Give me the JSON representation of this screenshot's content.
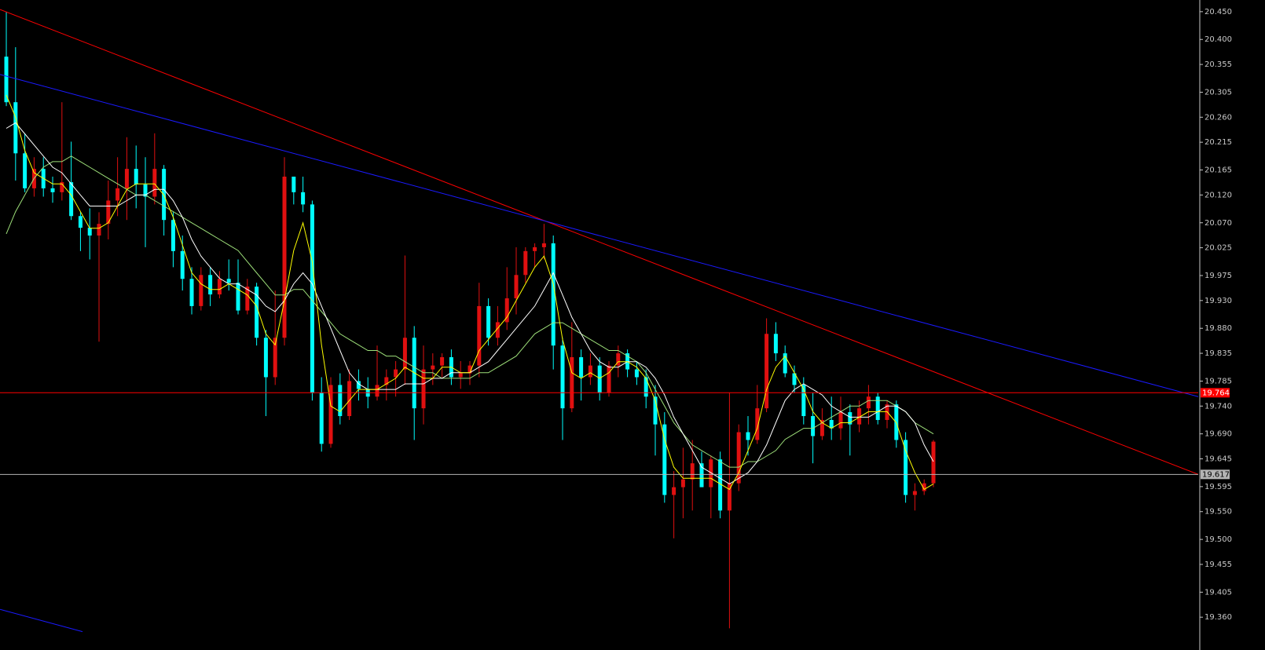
{
  "chart_data": {
    "type": "candlestick",
    "up_color": "#e01010",
    "down_color": "#00ffff",
    "axis_color": "#c8c8c8",
    "xlim": [
      -0.68,
      128.56
    ],
    "ylim": [
      19.332,
      20.471
    ],
    "yticks": [
      {
        "value": 20.45,
        "label": "20.450"
      },
      {
        "value": 20.4,
        "label": "20.400"
      },
      20.355,
      20.305,
      {
        "value": 20.26,
        "label": "20.260"
      },
      20.215,
      20.165,
      {
        "value": 20.12,
        "label": "20.120"
      },
      {
        "value": 20.07,
        "label": "20.070"
      },
      20.025,
      19.975,
      {
        "value": 19.93,
        "label": "19.930"
      },
      {
        "value": 19.88,
        "label": "19.880"
      },
      19.835,
      19.785,
      {
        "value": 19.74,
        "label": "19.740"
      },
      {
        "value": 19.69,
        "label": "19.690"
      },
      19.645,
      19.595,
      {
        "value": 19.55,
        "label": "19.550"
      },
      {
        "value": 19.5,
        "label": "19.500"
      },
      19.455,
      19.405,
      {
        "value": 19.36,
        "label": "19.360"
      }
    ],
    "candles": [
      [
        20.369,
        20.45,
        20.28,
        20.287
      ],
      [
        20.287,
        20.386,
        20.146,
        20.195
      ],
      [
        20.195,
        20.231,
        20.125,
        20.132
      ],
      [
        20.132,
        20.188,
        20.117,
        20.167
      ],
      [
        20.167,
        20.188,
        20.117,
        20.132
      ],
      [
        20.132,
        20.153,
        20.106,
        20.125
      ],
      [
        20.125,
        20.287,
        20.11,
        20.143
      ],
      [
        20.143,
        20.216,
        20.075,
        20.082
      ],
      [
        20.082,
        20.089,
        20.019,
        20.061
      ],
      [
        20.061,
        20.096,
        20.004,
        20.047
      ],
      [
        20.047,
        20.089,
        19.856,
        20.068
      ],
      [
        20.068,
        20.146,
        20.04,
        20.11
      ],
      [
        20.11,
        20.188,
        20.082,
        20.132
      ],
      [
        20.132,
        20.224,
        20.075,
        20.167
      ],
      [
        20.167,
        20.209,
        20.096,
        20.139
      ],
      [
        20.139,
        20.188,
        20.026,
        20.117
      ],
      [
        20.117,
        20.231,
        20.103,
        20.167
      ],
      [
        20.167,
        20.174,
        20.047,
        20.075
      ],
      [
        20.075,
        20.089,
        19.99,
        20.019
      ],
      [
        20.019,
        20.047,
        19.948,
        19.969
      ],
      [
        19.969,
        19.99,
        19.905,
        19.92
      ],
      [
        19.92,
        19.99,
        19.912,
        19.976
      ],
      [
        19.976,
        19.99,
        19.92,
        19.941
      ],
      [
        19.941,
        19.983,
        19.934,
        19.969
      ],
      [
        19.969,
        20.004,
        19.948,
        19.962
      ],
      [
        19.962,
        20.004,
        19.905,
        19.912
      ],
      [
        19.912,
        19.969,
        19.905,
        19.955
      ],
      [
        19.955,
        19.962,
        19.849,
        19.863
      ],
      [
        19.863,
        19.877,
        19.722,
        19.792
      ],
      [
        19.792,
        19.948,
        19.778,
        19.863
      ],
      [
        19.863,
        20.188,
        19.849,
        20.153
      ],
      [
        20.153,
        20.153,
        20.103,
        20.125
      ],
      [
        20.125,
        20.153,
        20.089,
        20.103
      ],
      [
        20.103,
        20.11,
        19.75,
        19.764
      ],
      [
        19.764,
        19.792,
        19.658,
        19.672
      ],
      [
        19.672,
        19.792,
        19.665,
        19.778
      ],
      [
        19.778,
        19.799,
        19.707,
        19.722
      ],
      [
        19.722,
        19.806,
        19.715,
        19.785
      ],
      [
        19.785,
        19.806,
        19.75,
        19.771
      ],
      [
        19.771,
        19.792,
        19.736,
        19.757
      ],
      [
        19.757,
        19.849,
        19.75,
        19.778
      ],
      [
        19.778,
        19.806,
        19.75,
        19.792
      ],
      [
        19.792,
        19.821,
        19.757,
        19.806
      ],
      [
        19.806,
        20.011,
        19.778,
        19.863
      ],
      [
        19.863,
        19.884,
        19.679,
        19.736
      ],
      [
        19.736,
        19.849,
        19.707,
        19.806
      ],
      [
        19.806,
        19.835,
        19.778,
        19.813
      ],
      [
        19.813,
        19.835,
        19.792,
        19.828
      ],
      [
        19.828,
        19.842,
        19.778,
        19.792
      ],
      [
        19.792,
        19.821,
        19.771,
        19.799
      ],
      [
        19.799,
        19.821,
        19.778,
        19.813
      ],
      [
        19.813,
        19.962,
        19.792,
        19.92
      ],
      [
        19.92,
        19.934,
        19.849,
        19.863
      ],
      [
        19.863,
        19.92,
        19.849,
        19.891
      ],
      [
        19.891,
        19.99,
        19.877,
        19.934
      ],
      [
        19.934,
        20.026,
        19.905,
        19.976
      ],
      [
        19.976,
        20.026,
        19.962,
        20.019
      ],
      [
        20.019,
        20.033,
        19.99,
        20.026
      ],
      [
        20.026,
        20.068,
        20.004,
        20.033
      ],
      [
        20.033,
        20.047,
        19.806,
        19.849
      ],
      [
        19.849,
        19.863,
        19.679,
        19.736
      ],
      [
        19.736,
        19.891,
        19.729,
        19.828
      ],
      [
        19.828,
        19.842,
        19.75,
        19.792
      ],
      [
        19.792,
        19.835,
        19.778,
        19.813
      ],
      [
        19.813,
        19.828,
        19.75,
        19.764
      ],
      [
        19.764,
        19.821,
        19.757,
        19.813
      ],
      [
        19.813,
        19.849,
        19.792,
        19.835
      ],
      [
        19.835,
        19.842,
        19.792,
        19.806
      ],
      [
        19.806,
        19.821,
        19.778,
        19.792
      ],
      [
        19.792,
        19.806,
        19.736,
        19.757
      ],
      [
        19.757,
        19.778,
        19.651,
        19.707
      ],
      [
        19.707,
        19.729,
        19.566,
        19.58
      ],
      [
        19.58,
        19.623,
        19.502,
        19.594
      ],
      [
        19.594,
        19.665,
        19.538,
        19.608
      ],
      [
        19.608,
        19.679,
        19.552,
        19.637
      ],
      [
        19.637,
        19.658,
        19.601,
        19.594
      ],
      [
        19.594,
        19.651,
        19.538,
        19.644
      ],
      [
        19.644,
        19.658,
        19.538,
        19.552
      ],
      [
        19.552,
        19.764,
        19.34,
        19.601
      ],
      [
        19.601,
        19.707,
        19.587,
        19.693
      ],
      [
        19.693,
        19.722,
        19.651,
        19.679
      ],
      [
        19.679,
        19.778,
        19.672,
        19.736
      ],
      [
        19.736,
        19.898,
        19.729,
        19.87
      ],
      [
        19.87,
        19.891,
        19.821,
        19.835
      ],
      [
        19.835,
        19.849,
        19.792,
        19.799
      ],
      [
        19.799,
        19.813,
        19.764,
        19.778
      ],
      [
        19.778,
        19.792,
        19.707,
        19.722
      ],
      [
        19.722,
        19.764,
        19.637,
        19.686
      ],
      [
        19.686,
        19.736,
        19.679,
        19.715
      ],
      [
        19.715,
        19.757,
        19.679,
        19.7
      ],
      [
        19.7,
        19.757,
        19.679,
        19.729
      ],
      [
        19.729,
        19.743,
        19.651,
        19.707
      ],
      [
        19.707,
        19.75,
        19.693,
        19.736
      ],
      [
        19.736,
        19.778,
        19.707,
        19.757
      ],
      [
        19.757,
        19.764,
        19.707,
        19.715
      ],
      [
        19.715,
        19.75,
        19.7,
        19.743
      ],
      [
        19.743,
        19.75,
        19.665,
        19.679
      ],
      [
        19.679,
        19.693,
        19.566,
        19.58
      ],
      [
        19.58,
        19.601,
        19.552,
        19.587
      ],
      [
        19.587,
        19.608,
        19.58,
        19.601
      ],
      [
        19.601,
        19.679,
        19.594,
        19.676
      ]
    ],
    "lines": [
      {
        "color": "#9ee07a",
        "values": [
          20.05,
          20.09,
          20.12,
          20.15,
          20.17,
          20.18,
          20.18,
          20.19,
          20.18,
          20.17,
          20.16,
          20.15,
          20.14,
          20.13,
          20.12,
          20.12,
          20.11,
          20.1,
          20.09,
          20.08,
          20.07,
          20.06,
          20.05,
          20.04,
          20.03,
          20.02,
          20.0,
          19.98,
          19.96,
          19.94,
          19.94,
          19.95,
          19.95,
          19.93,
          19.91,
          19.89,
          19.87,
          19.86,
          19.85,
          19.84,
          19.84,
          19.83,
          19.83,
          19.82,
          19.81,
          19.8,
          19.8,
          19.79,
          19.79,
          19.79,
          19.79,
          19.8,
          19.8,
          19.81,
          19.82,
          19.83,
          19.85,
          19.87,
          19.88,
          19.89,
          19.89,
          19.88,
          19.87,
          19.86,
          19.85,
          19.84,
          19.84,
          19.83,
          19.82,
          19.8,
          19.77,
          19.74,
          19.71,
          19.69,
          19.67,
          19.66,
          19.65,
          19.64,
          19.63,
          19.63,
          19.64,
          19.64,
          19.65,
          19.66,
          19.68,
          19.69,
          19.7,
          19.7,
          19.71,
          19.72,
          19.73,
          19.74,
          19.74,
          19.75,
          19.75,
          19.75,
          19.74,
          19.73,
          19.71,
          19.7,
          19.69
        ]
      },
      {
        "color": "#ffffff",
        "values": [
          20.24,
          20.25,
          20.23,
          20.21,
          20.19,
          20.17,
          20.16,
          20.14,
          20.12,
          20.1,
          20.1,
          20.1,
          20.1,
          20.11,
          20.12,
          20.12,
          20.13,
          20.13,
          20.11,
          20.08,
          20.04,
          20.01,
          19.99,
          19.97,
          19.96,
          19.96,
          19.95,
          19.94,
          19.92,
          19.91,
          19.93,
          19.96,
          19.98,
          19.96,
          19.92,
          19.88,
          19.84,
          19.8,
          19.78,
          19.77,
          19.77,
          19.77,
          19.77,
          19.78,
          19.78,
          19.78,
          19.79,
          19.79,
          19.8,
          19.8,
          19.8,
          19.81,
          19.82,
          19.84,
          19.86,
          19.88,
          19.9,
          19.92,
          19.95,
          19.98,
          19.94,
          19.9,
          19.87,
          19.84,
          19.82,
          19.81,
          19.81,
          19.82,
          19.82,
          19.81,
          19.79,
          19.76,
          19.72,
          19.69,
          19.66,
          19.63,
          19.62,
          19.61,
          19.6,
          19.61,
          19.62,
          19.64,
          19.67,
          19.71,
          19.75,
          19.77,
          19.78,
          19.77,
          19.76,
          19.74,
          19.73,
          19.72,
          19.72,
          19.72,
          19.73,
          19.74,
          19.74,
          19.73,
          19.71,
          19.67,
          19.64
        ]
      },
      {
        "color": "#ffff00",
        "values": [
          20.3,
          20.26,
          20.2,
          20.16,
          20.15,
          20.14,
          20.14,
          20.12,
          20.09,
          20.06,
          20.06,
          20.07,
          20.1,
          20.13,
          20.14,
          20.14,
          20.14,
          20.12,
          20.08,
          20.03,
          19.98,
          19.96,
          19.95,
          19.95,
          19.96,
          19.95,
          19.94,
          19.92,
          19.87,
          19.85,
          19.93,
          20.02,
          20.07,
          20.0,
          19.85,
          19.74,
          19.73,
          19.75,
          19.77,
          19.77,
          19.77,
          19.78,
          19.79,
          19.81,
          19.8,
          19.79,
          19.79,
          19.81,
          19.81,
          19.8,
          19.8,
          19.84,
          19.86,
          19.88,
          19.9,
          19.93,
          19.96,
          19.99,
          20.01,
          19.96,
          19.86,
          19.8,
          19.79,
          19.8,
          19.79,
          19.8,
          19.82,
          19.82,
          19.81,
          19.79,
          19.75,
          19.68,
          19.63,
          19.61,
          19.61,
          19.61,
          19.61,
          19.6,
          19.59,
          19.62,
          19.66,
          19.7,
          19.77,
          19.81,
          19.83,
          19.8,
          19.77,
          19.73,
          19.71,
          19.7,
          19.71,
          19.71,
          19.72,
          19.73,
          19.73,
          19.73,
          19.71,
          19.66,
          19.62,
          19.59,
          19.6
        ]
      }
    ],
    "trendlines": [
      {
        "color": "#ff0000",
        "x": [
          -0.68,
          128.56
        ],
        "y": [
          20.454,
          19.617
        ]
      },
      {
        "color": "#1a1aff",
        "x": [
          -0.68,
          128.56
        ],
        "y": [
          20.337,
          19.757
        ]
      },
      {
        "color": "#1a1aff",
        "x": [
          -0.68,
          8.22
        ],
        "y": [
          19.374,
          19.334
        ]
      }
    ],
    "hlines": [
      {
        "value": 19.764,
        "color": "#ff0000",
        "text_color": "#ffffff"
      },
      {
        "value": 19.617,
        "color": "#b4b4b4",
        "text_color": "#000000"
      }
    ]
  }
}
